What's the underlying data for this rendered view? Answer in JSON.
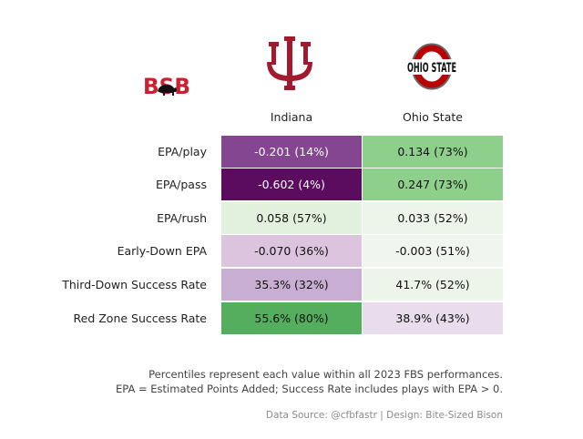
{
  "logos": {
    "bsb": {
      "text": "BSB",
      "color": "#cc2030",
      "bison_color": "#111111"
    },
    "indiana": {
      "color": "#a3192e"
    },
    "ohio_state": {
      "text": "OHIO STATE",
      "letter": "O",
      "color": "#bb0000",
      "grey": "#666666"
    }
  },
  "chart_data": {
    "type": "table",
    "columns": [
      "Indiana",
      "Ohio State"
    ],
    "rows": [
      {
        "label": "EPA/play",
        "values": [
          "-0.201 (14%)",
          "0.134 (73%)"
        ],
        "percentiles": [
          14,
          73
        ],
        "colors": [
          "#844691",
          "#8fcf8c"
        ],
        "text_colors": [
          "#ffffff",
          "#111111"
        ]
      },
      {
        "label": "EPA/pass",
        "values": [
          "-0.602 (4%)",
          "0.247 (73%)"
        ],
        "percentiles": [
          4,
          73
        ],
        "colors": [
          "#5b0c5f",
          "#8fcf8c"
        ],
        "text_colors": [
          "#ffffff",
          "#111111"
        ]
      },
      {
        "label": "EPA/rush",
        "values": [
          "0.058 (57%)",
          "0.033 (52%)"
        ],
        "percentiles": [
          57,
          52
        ],
        "colors": [
          "#e2f1de",
          "#edf4ea"
        ],
        "text_colors": [
          "#111111",
          "#111111"
        ]
      },
      {
        "label": "Early-Down EPA",
        "values": [
          "-0.070 (36%)",
          "-0.003 (51%)"
        ],
        "percentiles": [
          36,
          51
        ],
        "colors": [
          "#dcc3de",
          "#f1f5ef"
        ],
        "text_colors": [
          "#111111",
          "#111111"
        ]
      },
      {
        "label": "Third-Down Success Rate",
        "values": [
          "35.3% (32%)",
          "41.7% (52%)"
        ],
        "percentiles": [
          32,
          52
        ],
        "colors": [
          "#c7aed2",
          "#edf4ea"
        ],
        "text_colors": [
          "#111111",
          "#111111"
        ]
      },
      {
        "label": "Red Zone Success Rate",
        "values": [
          "55.6% (80%)",
          "38.9% (43%)"
        ],
        "percentiles": [
          80,
          43
        ],
        "colors": [
          "#55ae5e",
          "#e9dcec"
        ],
        "text_colors": [
          "#111111",
          "#111111"
        ]
      }
    ]
  },
  "footnotes": [
    "Percentiles represent each value within all 2023 FBS performances.",
    "EPA = Estimated Points Added; Success Rate includes plays with EPA > 0."
  ],
  "credit": "Data Source: @cfbfastr | Design: Bite-Sized Bison"
}
